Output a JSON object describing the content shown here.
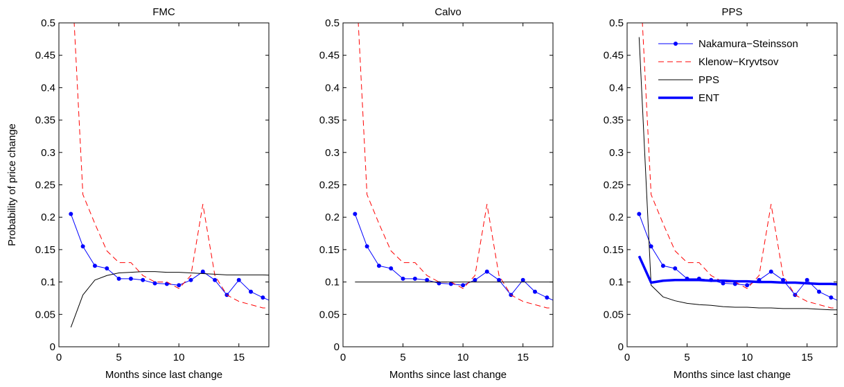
{
  "chart_data": [
    {
      "type": "line",
      "title": "FMC",
      "xlabel": "Months since last change",
      "ylabel": "Probability of price change",
      "x": [
        1,
        2,
        3,
        4,
        5,
        6,
        7,
        8,
        9,
        10,
        11,
        12,
        13,
        14,
        15,
        16,
        17,
        18
      ],
      "xlim": [
        0,
        17.5
      ],
      "ylim": [
        0,
        0.5
      ],
      "xticks": [
        0,
        5,
        10,
        15
      ],
      "yticks": [
        0,
        0.05,
        0.1,
        0.15,
        0.2,
        0.25,
        0.3,
        0.35,
        0.4,
        0.45,
        0.5
      ],
      "series": [
        {
          "color": "#0000ff",
          "marker": "circle",
          "width": 1,
          "values": [
            0.205,
            0.155,
            0.125,
            0.121,
            0.105,
            0.105,
            0.103,
            0.098,
            0.097,
            0.095,
            0.103,
            0.116,
            0.103,
            0.08,
            0.103,
            0.085,
            0.076,
            0.068
          ]
        },
        {
          "color": "#ff0000",
          "dash": true,
          "width": 1,
          "values": [
            0.6,
            0.235,
            0.19,
            0.148,
            0.13,
            0.13,
            0.11,
            0.1,
            0.1,
            0.09,
            0.11,
            0.22,
            0.11,
            0.08,
            0.07,
            0.065,
            0.06,
            0.06
          ]
        },
        {
          "color": "#000000",
          "width": 1,
          "values": [
            0.03,
            0.08,
            0.103,
            0.11,
            0.114,
            0.115,
            0.116,
            0.116,
            0.115,
            0.115,
            0.114,
            0.113,
            0.112,
            0.111,
            0.111,
            0.111,
            0.111,
            0.11
          ]
        }
      ]
    },
    {
      "type": "line",
      "title": "Calvo",
      "xlabel": "Months since last change",
      "x": [
        1,
        2,
        3,
        4,
        5,
        6,
        7,
        8,
        9,
        10,
        11,
        12,
        13,
        14,
        15,
        16,
        17,
        18
      ],
      "xlim": [
        0,
        17.5
      ],
      "ylim": [
        0,
        0.5
      ],
      "xticks": [
        0,
        5,
        10,
        15
      ],
      "yticks": [
        0,
        0.05,
        0.1,
        0.15,
        0.2,
        0.25,
        0.3,
        0.35,
        0.4,
        0.45,
        0.5
      ],
      "series": [
        {
          "color": "#0000ff",
          "marker": "circle",
          "width": 1,
          "values": [
            0.205,
            0.155,
            0.125,
            0.121,
            0.105,
            0.105,
            0.103,
            0.098,
            0.097,
            0.095,
            0.103,
            0.116,
            0.103,
            0.08,
            0.103,
            0.085,
            0.076,
            0.068
          ]
        },
        {
          "color": "#ff0000",
          "dash": true,
          "width": 1,
          "values": [
            0.6,
            0.235,
            0.19,
            0.148,
            0.13,
            0.13,
            0.11,
            0.1,
            0.1,
            0.09,
            0.11,
            0.22,
            0.11,
            0.08,
            0.07,
            0.065,
            0.06,
            0.06
          ]
        },
        {
          "color": "#000000",
          "width": 1,
          "values": [
            0.1,
            0.1,
            0.1,
            0.1,
            0.1,
            0.1,
            0.1,
            0.1,
            0.1,
            0.1,
            0.1,
            0.1,
            0.1,
            0.1,
            0.1,
            0.1,
            0.1,
            0.1
          ]
        }
      ]
    },
    {
      "type": "line",
      "title": "PPS",
      "xlabel": "Months since last change",
      "legend": "upper right",
      "x": [
        1,
        2,
        3,
        4,
        5,
        6,
        7,
        8,
        9,
        10,
        11,
        12,
        13,
        14,
        15,
        16,
        17,
        18
      ],
      "xlim": [
        0,
        17.5
      ],
      "ylim": [
        0,
        0.5
      ],
      "xticks": [
        0,
        5,
        10,
        15
      ],
      "yticks": [
        0,
        0.05,
        0.1,
        0.15,
        0.2,
        0.25,
        0.3,
        0.35,
        0.4,
        0.45,
        0.5
      ],
      "series": [
        {
          "name": "Nakamura−Steinsson",
          "color": "#0000ff",
          "marker": "circle",
          "width": 1,
          "values": [
            0.205,
            0.155,
            0.125,
            0.121,
            0.105,
            0.105,
            0.103,
            0.098,
            0.097,
            0.095,
            0.103,
            0.116,
            0.103,
            0.08,
            0.103,
            0.085,
            0.076,
            0.068
          ]
        },
        {
          "name": "Klenow−Kryvtsov",
          "color": "#ff0000",
          "dash": true,
          "width": 1,
          "values": [
            0.6,
            0.235,
            0.19,
            0.148,
            0.13,
            0.13,
            0.11,
            0.1,
            0.1,
            0.09,
            0.11,
            0.22,
            0.11,
            0.08,
            0.07,
            0.065,
            0.06,
            0.06
          ]
        },
        {
          "name": "PPS",
          "color": "#000000",
          "width": 1,
          "values": [
            0.478,
            0.095,
            0.077,
            0.071,
            0.067,
            0.065,
            0.064,
            0.062,
            0.061,
            0.061,
            0.06,
            0.06,
            0.059,
            0.059,
            0.059,
            0.058,
            0.057,
            0.057
          ]
        },
        {
          "name": "ENT",
          "color": "#0000ff",
          "width": 3.5,
          "values": [
            0.14,
            0.099,
            0.102,
            0.103,
            0.103,
            0.103,
            0.102,
            0.102,
            0.101,
            0.101,
            0.1,
            0.1,
            0.099,
            0.099,
            0.098,
            0.097,
            0.097,
            0.096
          ]
        }
      ]
    }
  ]
}
